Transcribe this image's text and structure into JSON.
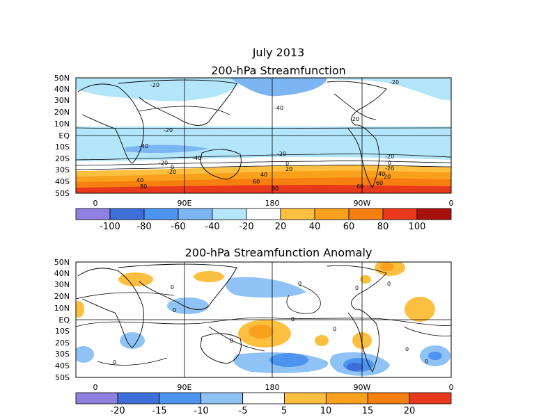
{
  "page_title": "July 2013",
  "panels": {
    "top": {
      "title": "200-hPa Streamfunction",
      "lat_labels": [
        "50N",
        "40N",
        "30N",
        "20N",
        "10N",
        "EQ",
        "10S",
        "20S",
        "30S",
        "40S",
        "50S"
      ],
      "lon_labels": [
        "0",
        "90E",
        "180",
        "90W",
        "0"
      ],
      "contour_labels": [
        "-20",
        "-40",
        "-40",
        "-20",
        "-20",
        "-20",
        "-40",
        "-20",
        "-20",
        "0",
        "-20",
        "-20",
        "0",
        "20",
        "40",
        "40",
        "60",
        "60",
        "80",
        "80",
        "-20",
        "0",
        "20",
        "40",
        "60"
      ],
      "colorbar": {
        "labels": [
          "-100",
          "-80",
          "-60",
          "-40",
          "-20",
          "20",
          "40",
          "60",
          "80",
          "100"
        ],
        "colors": [
          "#8f7fe0",
          "#3e6fd9",
          "#4d94ee",
          "#7cb5f2",
          "#b4e6fb",
          "#ffffff",
          "#fdbf40",
          "#f9a11d",
          "#f77f10",
          "#e8391c",
          "#a80f0f"
        ]
      }
    },
    "bottom": {
      "title": "200-hPa Streamfunction Anomaly",
      "lat_labels": [
        "50N",
        "40N",
        "30N",
        "20N",
        "10N",
        "EQ",
        "10S",
        "20S",
        "30S",
        "40S",
        "50S"
      ],
      "lon_labels": [
        "0",
        "90E",
        "180",
        "90W",
        "0"
      ],
      "contour_labels": [
        "0",
        "0",
        "0",
        "0",
        "0",
        "0",
        "0",
        "0",
        "0",
        "0",
        "0"
      ],
      "colorbar": {
        "labels": [
          "-20",
          "-15",
          "-10",
          "-5",
          "5",
          "10",
          "15",
          "20"
        ],
        "colors": [
          "#8f7fe0",
          "#3e6fd9",
          "#4d94ee",
          "#8fc3f5",
          "#ffffff",
          "#fdbf40",
          "#f9a11d",
          "#f77f10",
          "#e8391c"
        ]
      }
    }
  }
}
